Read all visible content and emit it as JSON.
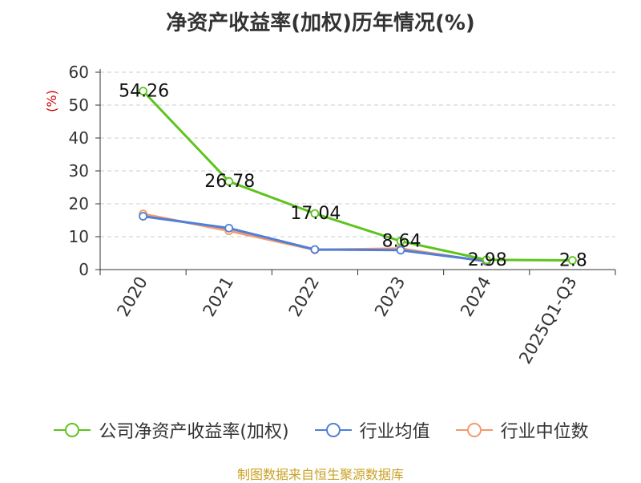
{
  "chart_data": {
    "type": "line",
    "title": "净资产收益率(加权)历年情况(%)",
    "ylabel": "(%)",
    "categories": [
      "2020",
      "2021",
      "2022",
      "2023",
      "2024",
      "2025Q1-Q3"
    ],
    "ylim": [
      0,
      60
    ],
    "yticks": [
      "0",
      "10",
      "20",
      "30",
      "40",
      "50",
      "60"
    ],
    "grid": true,
    "legend_placement": "bottom",
    "series": [
      {
        "name": "公司净资产收益率(加权)",
        "color": "#5dc41c",
        "values": [
          54.26,
          26.78,
          17.04,
          8.64,
          2.98,
          2.8
        ],
        "labels": [
          "54.26",
          "26.78",
          "17.04",
          "8.64",
          "2.98",
          "2.8"
        ]
      },
      {
        "name": "行业均值",
        "color": "#4f7fd8",
        "values": [
          16.2,
          12.6,
          6.1,
          5.9,
          2.6,
          null
        ]
      },
      {
        "name": "行业中位数",
        "color": "#f39a6b",
        "values": [
          16.9,
          11.8,
          6.0,
          6.4,
          2.4,
          null
        ]
      }
    ]
  },
  "source": "制图数据来自恒生聚源数据库"
}
